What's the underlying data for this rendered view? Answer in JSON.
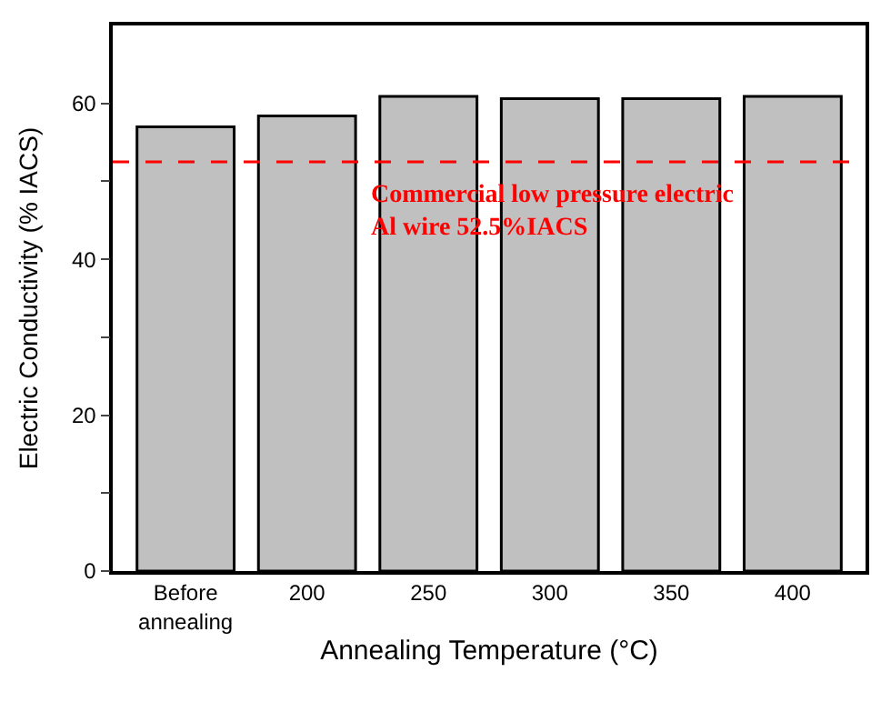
{
  "chart_data": {
    "type": "bar",
    "xlabel": "Annealing Temperature (°C)",
    "ylabel": "Electric Conductivity (% IACS)",
    "categories": [
      "Before\nannealing",
      "200",
      "250",
      "300",
      "350",
      "400"
    ],
    "series": [
      {
        "color": "#c0c0c0",
        "values": [
          57.0,
          58.4,
          60.9,
          60.6,
          60.6,
          60.9
        ]
      }
    ],
    "ylim": [
      0,
      70
    ],
    "yticks": [
      0,
      {
        "value": 10,
        "label": null
      },
      20,
      {
        "value": 30,
        "label": null
      },
      40,
      {
        "value": 50,
        "label": null
      },
      60
    ],
    "ref_lines": [
      {
        "axis": "y",
        "value": 52.5,
        "label": "Commercial low pressure electric\nAl wire 52.5%IACS",
        "color": "#ff0000",
        "line_style": "dashed"
      }
    ]
  }
}
